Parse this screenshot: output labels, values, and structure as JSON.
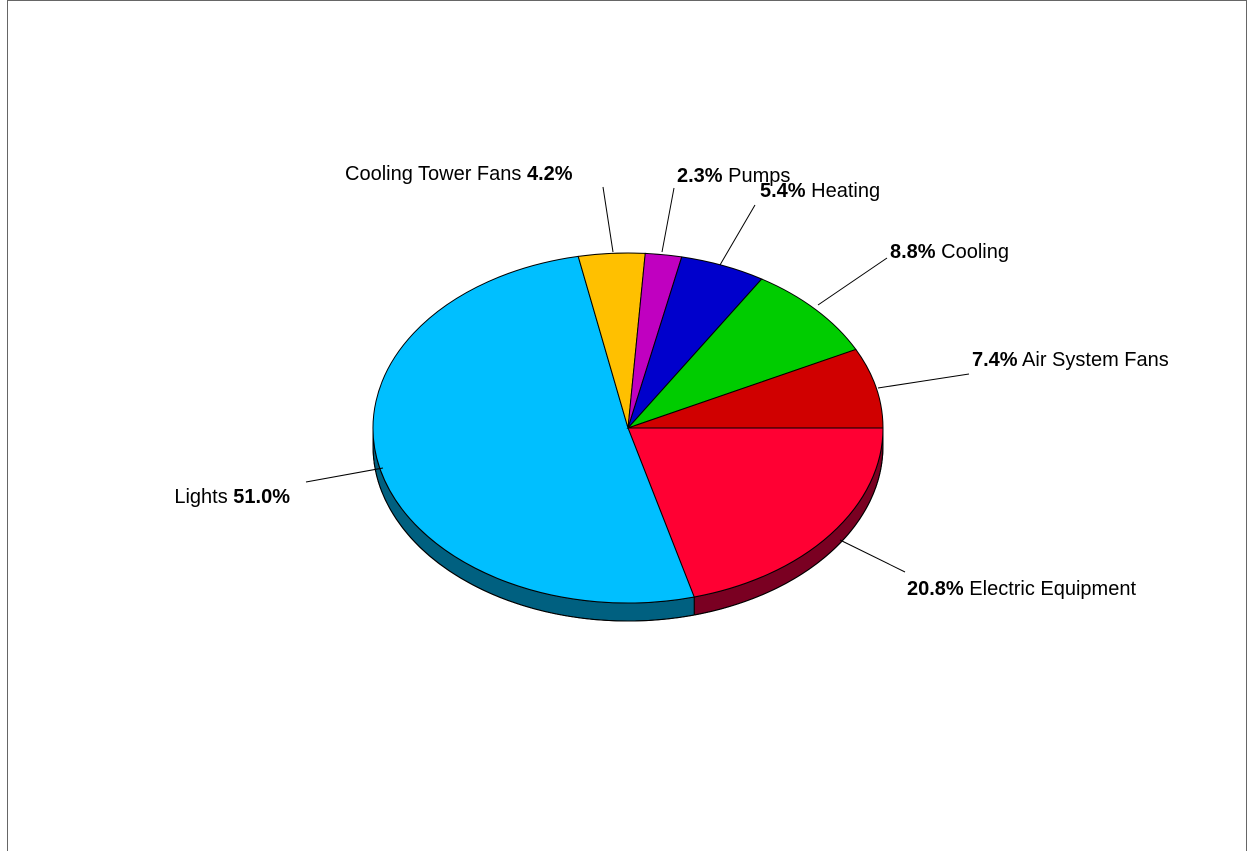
{
  "chart_data": {
    "type": "pie",
    "title": "",
    "slices": [
      {
        "name": "Electric Equipment",
        "value": 20.8,
        "label": "20.8%",
        "color": "#FF0033",
        "side_color": "#7A0022",
        "label_order": "pct-first"
      },
      {
        "name": "Lights",
        "value": 51.0,
        "label": "51.0%",
        "color": "#00BFFF",
        "side_color": "#006080",
        "label_order": "name-first"
      },
      {
        "name": "Cooling Tower Fans",
        "value": 4.2,
        "label": "4.2%",
        "color": "#FFC000",
        "side_color": "#806000",
        "label_order": "name-first"
      },
      {
        "name": "Pumps",
        "value": 2.3,
        "label": "2.3%",
        "color": "#C000C0",
        "side_color": "#600060",
        "label_order": "pct-first"
      },
      {
        "name": "Heating",
        "value": 5.4,
        "label": "5.4%",
        "color": "#0000CC",
        "side_color": "#000066",
        "label_order": "pct-first"
      },
      {
        "name": "Cooling",
        "value": 8.8,
        "label": "8.8%",
        "color": "#00CC00",
        "side_color": "#006600",
        "label_order": "pct-first"
      },
      {
        "name": "Air System Fans",
        "value": 7.4,
        "label": "7.4%",
        "color": "#D00000",
        "side_color": "#680000",
        "label_order": "pct-first"
      }
    ],
    "legend": "none",
    "style": "3d-tilted"
  }
}
